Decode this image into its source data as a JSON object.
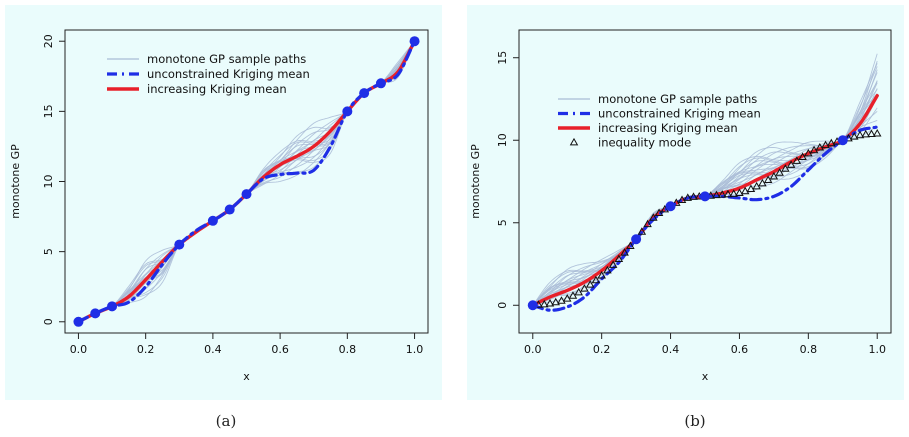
{
  "captions": {
    "a": "(a)",
    "b": "(b)"
  },
  "colors": {
    "background": "#eafcfc",
    "sample": "#a9bbd6",
    "unconstrained": "#1f2ee6",
    "increasing": "#e8202a",
    "data": "#1f2ee6",
    "mode": "#111111"
  },
  "chart_data": [
    {
      "type": "line",
      "panel": "a",
      "title": "",
      "xlabel": "x",
      "ylabel": "monotone GP",
      "xlim": [
        0,
        1
      ],
      "ylim": [
        0,
        20
      ],
      "xticks": [
        "0.0",
        "0.2",
        "0.4",
        "0.6",
        "0.8",
        "1.0"
      ],
      "yticks": [
        "0",
        "5",
        "10",
        "15",
        "20"
      ],
      "legend": {
        "placement": "top-left",
        "entries": [
          "monotone GP sample paths",
          "unconstrained Kriging mean",
          "increasing Kriging mean"
        ]
      },
      "data_points": {
        "x": [
          0,
          0.05,
          0.1,
          0.3,
          0.4,
          0.45,
          0.5,
          0.8,
          0.85,
          0.9,
          1.0
        ],
        "y": [
          0,
          0.6,
          1.1,
          5.5,
          7.2,
          8.0,
          9.1,
          15.0,
          16.3,
          17.0,
          20.0
        ]
      },
      "series": [
        {
          "name": "increasing Kriging mean",
          "x": [
            0,
            0.05,
            0.1,
            0.15,
            0.2,
            0.25,
            0.3,
            0.35,
            0.4,
            0.45,
            0.5,
            0.55,
            0.6,
            0.65,
            0.7,
            0.75,
            0.8,
            0.85,
            0.9,
            0.95,
            1.0
          ],
          "y": [
            0,
            0.6,
            1.1,
            1.8,
            3.0,
            4.3,
            5.5,
            6.4,
            7.2,
            8.0,
            9.1,
            10.3,
            11.2,
            11.8,
            12.5,
            13.6,
            15.0,
            16.3,
            17.0,
            17.8,
            20.0
          ]
        },
        {
          "name": "unconstrained Kriging mean",
          "x": [
            0,
            0.05,
            0.1,
            0.15,
            0.2,
            0.25,
            0.3,
            0.35,
            0.4,
            0.45,
            0.5,
            0.55,
            0.6,
            0.65,
            0.7,
            0.75,
            0.8,
            0.85,
            0.9,
            0.95,
            1.0
          ],
          "y": [
            0,
            0.6,
            1.1,
            1.4,
            2.5,
            4.1,
            5.5,
            6.5,
            7.2,
            8.0,
            9.1,
            10.2,
            10.5,
            10.6,
            10.8,
            12.5,
            15.0,
            16.3,
            17.0,
            17.6,
            20.0
          ]
        }
      ],
      "sample_paths": {
        "x": [
          0,
          0.05,
          0.1,
          0.15,
          0.2,
          0.25,
          0.3,
          0.35,
          0.4,
          0.45,
          0.5,
          0.55,
          0.6,
          0.65,
          0.7,
          0.75,
          0.8,
          0.85,
          0.9,
          0.95,
          1.0
        ],
        "lower": [
          0,
          0.6,
          1.1,
          1.3,
          1.6,
          2.8,
          5.5,
          6.3,
          7.2,
          8.0,
          9.1,
          9.7,
          10.0,
          10.3,
          10.6,
          11.8,
          15.0,
          16.3,
          17.0,
          17.4,
          20.0
        ],
        "upper": [
          0,
          0.6,
          1.1,
          2.6,
          4.6,
          5.3,
          5.5,
          6.6,
          7.2,
          8.0,
          9.1,
          11.0,
          12.3,
          13.6,
          14.3,
          14.6,
          15.0,
          16.3,
          17.0,
          18.6,
          20.0
        ],
        "count": 20
      }
    },
    {
      "type": "line",
      "panel": "b",
      "title": "",
      "xlabel": "x",
      "ylabel": "monotone GP",
      "xlim": [
        0,
        1
      ],
      "ylim": [
        -1,
        16
      ],
      "xticks": [
        "0.0",
        "0.2",
        "0.4",
        "0.6",
        "0.8",
        "1.0"
      ],
      "yticks": [
        "0",
        "5",
        "10",
        "15"
      ],
      "legend": {
        "placement": "top-left",
        "entries": [
          "monotone GP sample paths",
          "unconstrained Kriging mean",
          "increasing Kriging mean",
          "inequality mode"
        ]
      },
      "data_points": {
        "x": [
          0,
          0.3,
          0.4,
          0.5,
          0.9
        ],
        "y": [
          0,
          4.0,
          6.0,
          6.6,
          10.0
        ]
      },
      "series": [
        {
          "name": "increasing Kriging mean",
          "x": [
            0,
            0.05,
            0.1,
            0.15,
            0.2,
            0.25,
            0.3,
            0.35,
            0.4,
            0.45,
            0.5,
            0.55,
            0.6,
            0.65,
            0.7,
            0.75,
            0.8,
            0.85,
            0.9,
            0.95,
            1.0
          ],
          "y": [
            0,
            0.5,
            0.9,
            1.4,
            2.1,
            3.0,
            4.0,
            5.3,
            6.0,
            6.5,
            6.6,
            6.8,
            7.1,
            7.6,
            8.1,
            8.7,
            9.2,
            9.6,
            10.0,
            11.0,
            12.7
          ]
        },
        {
          "name": "unconstrained Kriging mean",
          "x": [
            0,
            0.05,
            0.1,
            0.15,
            0.2,
            0.25,
            0.3,
            0.35,
            0.4,
            0.45,
            0.5,
            0.55,
            0.6,
            0.65,
            0.7,
            0.75,
            0.8,
            0.85,
            0.9,
            0.95,
            1.0
          ],
          "y": [
            0,
            -0.3,
            -0.1,
            0.5,
            1.6,
            2.6,
            4.0,
            5.2,
            6.0,
            6.5,
            6.6,
            6.6,
            6.5,
            6.4,
            6.6,
            7.2,
            8.2,
            9.2,
            10.0,
            10.6,
            10.8
          ]
        },
        {
          "name": "inequality mode",
          "x": [
            0,
            0.05,
            0.1,
            0.15,
            0.2,
            0.25,
            0.3,
            0.35,
            0.4,
            0.45,
            0.5,
            0.55,
            0.6,
            0.65,
            0.7,
            0.75,
            0.8,
            0.85,
            0.9,
            0.95,
            1.0
          ],
          "y": [
            0,
            0.1,
            0.4,
            1.0,
            1.8,
            2.8,
            4.0,
            5.3,
            6.0,
            6.5,
            6.6,
            6.7,
            6.8,
            7.2,
            7.8,
            8.5,
            9.2,
            9.7,
            10.0,
            10.3,
            10.4
          ]
        }
      ],
      "sample_paths": {
        "x": [
          0,
          0.05,
          0.1,
          0.15,
          0.2,
          0.25,
          0.3,
          0.35,
          0.4,
          0.45,
          0.5,
          0.55,
          0.6,
          0.65,
          0.7,
          0.75,
          0.8,
          0.85,
          0.9,
          0.95,
          1.0
        ],
        "lower": [
          0,
          0.1,
          0.3,
          0.8,
          1.5,
          2.6,
          4.0,
          5.2,
          6.0,
          6.5,
          6.6,
          6.6,
          6.7,
          6.9,
          7.1,
          7.5,
          8.0,
          8.9,
          10.0,
          10.2,
          10.6
        ],
        "upper": [
          0,
          1.4,
          2.3,
          2.6,
          2.9,
          3.4,
          4.0,
          5.6,
          6.0,
          6.5,
          6.6,
          7.6,
          8.8,
          9.6,
          9.9,
          9.9,
          10.0,
          10.0,
          10.0,
          12.5,
          15.8
        ],
        "count": 20
      }
    }
  ]
}
